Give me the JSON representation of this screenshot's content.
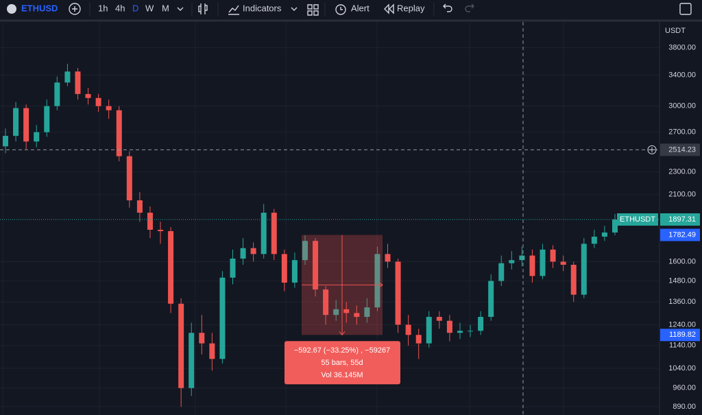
{
  "toolbar": {
    "symbol": "ETHUSD",
    "intervals": [
      "1h",
      "4h",
      "D",
      "W",
      "M"
    ],
    "indicators": "Indicators",
    "alert": "Alert",
    "replay": "Replay"
  },
  "chart_data": {
    "type": "candlestick",
    "symbol_label": "ETHUSDT",
    "currency": "USDT",
    "log_scale": true,
    "grid": true,
    "up_color": "#26a69a",
    "down_color": "#ef5350",
    "open": [
      2550,
      2660,
      2976,
      2600,
      2700,
      3000,
      3300,
      3450,
      3150,
      3100,
      3000,
      2950,
      2450,
      2050,
      1950,
      1820,
      1810,
      1350,
      960,
      1200,
      1150,
      1080,
      1500,
      1620,
      1690,
      1650,
      1950,
      1650,
      1470,
      1610,
      1740,
      1430,
      1290,
      1320,
      1300,
      1280,
      1330,
      1650,
      1600,
      1240,
      1190,
      1150,
      1280,
      1260,
      1200,
      1210,
      1210,
      1280,
      1480,
      1590,
      1610,
      1640,
      1510,
      1680,
      1600,
      1580,
      1400,
      1720,
      1770,
      1800
    ],
    "high": [
      2740,
      3050,
      3020,
      2780,
      3080,
      3380,
      3560,
      3500,
      3230,
      3150,
      3080,
      3000,
      2500,
      2120,
      2000,
      1880,
      1840,
      1380,
      1250,
      1290,
      1200,
      1540,
      1680,
      1760,
      1730,
      2020,
      1980,
      1680,
      1660,
      1780,
      1760,
      1450,
      1370,
      1360,
      1340,
      1380,
      1700,
      1720,
      1620,
      1290,
      1220,
      1310,
      1310,
      1290,
      1250,
      1240,
      1310,
      1520,
      1640,
      1670,
      1700,
      1680,
      1720,
      1710,
      1640,
      1600,
      1760,
      1820,
      1850,
      1940
    ],
    "low": [
      2480,
      2600,
      2520,
      2540,
      2650,
      2950,
      3250,
      3080,
      3020,
      2930,
      2850,
      2400,
      1990,
      1880,
      1760,
      1720,
      1300,
      890,
      930,
      1100,
      1030,
      1060,
      1460,
      1580,
      1600,
      1620,
      1610,
      1420,
      1440,
      1580,
      1390,
      1240,
      1260,
      1250,
      1240,
      1250,
      1310,
      1560,
      1200,
      1140,
      1080,
      1130,
      1220,
      1160,
      1170,
      1180,
      1190,
      1260,
      1450,
      1550,
      1570,
      1470,
      1490,
      1560,
      1540,
      1360,
      1380,
      1690,
      1740,
      1780
    ],
    "close": [
      2660,
      2976,
      2600,
      2700,
      3000,
      3300,
      3450,
      3150,
      3100,
      3000,
      2950,
      2450,
      2050,
      1950,
      1820,
      1810,
      1350,
      960,
      1200,
      1150,
      1080,
      1500,
      1620,
      1690,
      1650,
      1950,
      1650,
      1470,
      1610,
      1740,
      1430,
      1290,
      1320,
      1300,
      1280,
      1330,
      1650,
      1600,
      1240,
      1190,
      1150,
      1280,
      1260,
      1200,
      1210,
      1210,
      1280,
      1480,
      1590,
      1610,
      1640,
      1510,
      1680,
      1600,
      1580,
      1400,
      1720,
      1770,
      1800,
      1897.31
    ],
    "ylim": [
      861,
      4215
    ],
    "yticks": [
      {
        "value": 3800,
        "label": "3800.00"
      },
      {
        "value": 3400,
        "label": "3400.00"
      },
      {
        "value": 3000,
        "label": "3000.00"
      },
      {
        "value": 2700,
        "label": "2700.00"
      },
      {
        "value": 2300,
        "label": "2300.00"
      },
      {
        "value": 2100,
        "label": "2100.00"
      },
      {
        "value": 1600,
        "label": "1600.00"
      },
      {
        "value": 1480,
        "label": "1480.00"
      },
      {
        "value": 1360,
        "label": "1360.00"
      },
      {
        "value": 1240,
        "label": "1240.00"
      },
      {
        "value": 1140,
        "label": "1140.00"
      },
      {
        "value": 1040,
        "label": "1040.00"
      },
      {
        "value": 960,
        "label": "960.00"
      },
      {
        "value": 890,
        "label": "890.00"
      }
    ],
    "crosshair_price": 2514.23,
    "measure": {
      "top": 1782.49,
      "bottom": 1189.82,
      "lines": [
        "−592.67 (−33.25%) , −59267",
        "55 bars, 55d",
        "Vol 36.145M"
      ]
    }
  }
}
